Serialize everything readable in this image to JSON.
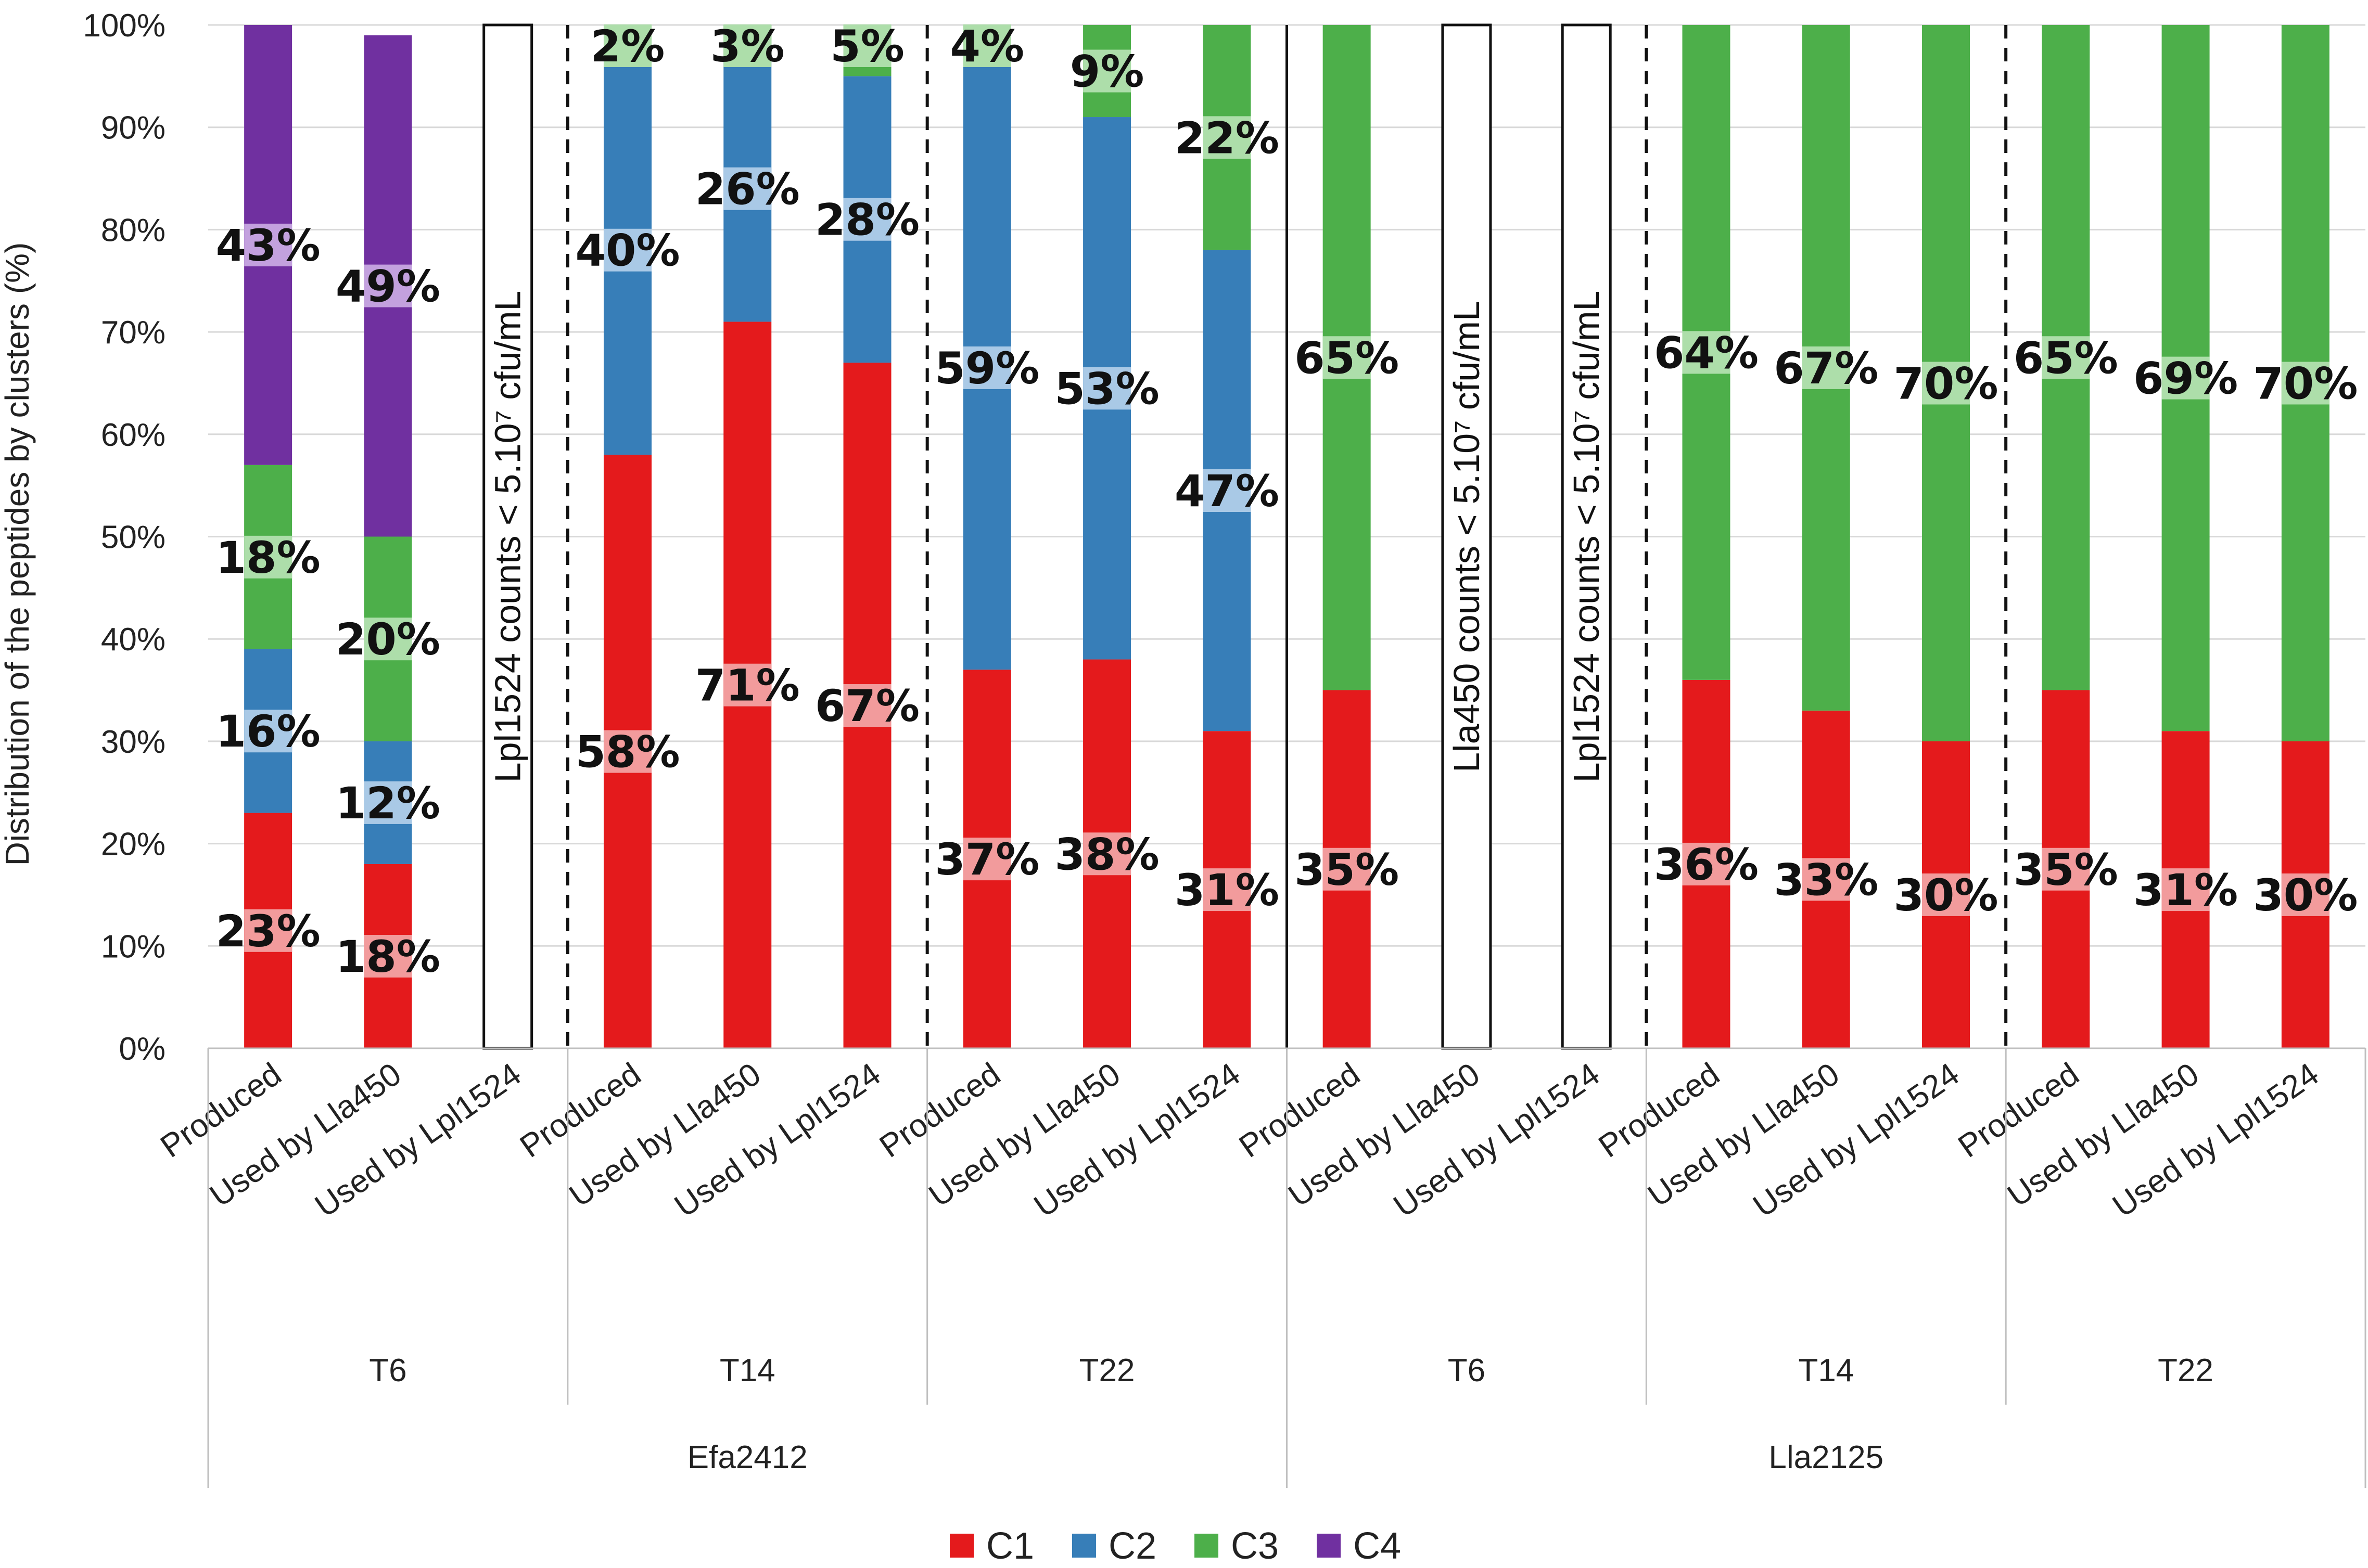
{
  "chart_data": {
    "type": "bar",
    "stacked": true,
    "ylabel": "Distribution of the peptides by clusters (%)",
    "ylim": [
      0,
      100
    ],
    "yticks": [
      "0%",
      "10%",
      "20%",
      "30%",
      "40%",
      "50%",
      "60%",
      "70%",
      "80%",
      "90%",
      "100%"
    ],
    "legend": {
      "position": "bottom",
      "entries": [
        {
          "name": "C1",
          "color": "#e41a1c"
        },
        {
          "name": "C2",
          "color": "#377eb8"
        },
        {
          "name": "C3",
          "color": "#4daf4a"
        },
        {
          "name": "C4",
          "color": "#7030a0"
        }
      ]
    },
    "bars": [
      {
        "category": "Produced",
        "time": "T6",
        "strain": "Efa2412",
        "values": [
          23,
          16,
          18,
          43
        ],
        "labels": [
          "23%",
          "16%",
          "18%",
          "43%"
        ]
      },
      {
        "category": "Used by Lla450",
        "time": "T6",
        "strain": "Efa2412",
        "values": [
          18,
          12,
          20,
          49
        ],
        "labels": [
          "18%",
          "12%",
          "20%",
          "49%"
        ]
      },
      {
        "category": "Used by Lpl1524",
        "time": "T6",
        "strain": "Efa2412",
        "values": null,
        "note": "Lpl1524 counts < 5.10⁷ cfu/mL"
      },
      {
        "category": "Produced",
        "time": "T14",
        "strain": "Efa2412",
        "values": [
          58,
          40,
          2,
          0
        ],
        "labels": [
          "58%",
          "40%",
          "2%",
          ""
        ]
      },
      {
        "category": "Used by Lla450",
        "time": "T14",
        "strain": "Efa2412",
        "values": [
          71,
          26,
          3,
          0
        ],
        "labels": [
          "71%",
          "26%",
          "3%",
          ""
        ]
      },
      {
        "category": "Used by Lpl1524",
        "time": "T14",
        "strain": "Efa2412",
        "values": [
          67,
          28,
          5,
          0
        ],
        "labels": [
          "67%",
          "28%",
          "5%",
          ""
        ]
      },
      {
        "category": "Produced",
        "time": "T22",
        "strain": "Efa2412",
        "values": [
          37,
          59,
          4,
          0
        ],
        "labels": [
          "37%",
          "59%",
          "4%",
          ""
        ]
      },
      {
        "category": "Used by Lla450",
        "time": "T22",
        "strain": "Efa2412",
        "values": [
          38,
          53,
          9,
          0
        ],
        "labels": [
          "38%",
          "53%",
          "9%",
          ""
        ]
      },
      {
        "category": "Used by Lpl1524",
        "time": "T22",
        "strain": "Efa2412",
        "values": [
          31,
          47,
          22,
          0
        ],
        "labels": [
          "31%",
          "47%",
          "22%",
          ""
        ]
      },
      {
        "category": "Produced",
        "time": "T6",
        "strain": "Lla2125",
        "values": [
          35,
          0,
          65,
          0
        ],
        "labels": [
          "35%",
          "",
          "65%",
          ""
        ]
      },
      {
        "category": "Used by Lla450",
        "time": "T6",
        "strain": "Lla2125",
        "values": null,
        "note": "Lla450 counts < 5.10⁷ cfu/mL"
      },
      {
        "category": "Used by Lpl1524",
        "time": "T6",
        "strain": "Lla2125",
        "values": null,
        "note": "Lpl1524 counts < 5.10⁷ cfu/mL"
      },
      {
        "category": "Produced",
        "time": "T14",
        "strain": "Lla2125",
        "values": [
          36,
          0,
          64,
          0
        ],
        "labels": [
          "36%",
          "",
          "64%",
          ""
        ]
      },
      {
        "category": "Used by Lla450",
        "time": "T14",
        "strain": "Lla2125",
        "values": [
          33,
          0,
          67,
          0
        ],
        "labels": [
          "33%",
          "",
          "67%",
          ""
        ]
      },
      {
        "category": "Used by Lpl1524",
        "time": "T14",
        "strain": "Lla2125",
        "values": [
          30,
          0,
          70,
          0
        ],
        "labels": [
          "30%",
          "",
          "70%",
          ""
        ]
      },
      {
        "category": "Produced",
        "time": "T22",
        "strain": "Lla2125",
        "values": [
          35,
          0,
          65,
          0
        ],
        "labels": [
          "35%",
          "",
          "65%",
          ""
        ]
      },
      {
        "category": "Used by Lla450",
        "time": "T22",
        "strain": "Lla2125",
        "values": [
          31,
          0,
          69,
          0
        ],
        "labels": [
          "31%",
          "",
          "69%",
          ""
        ]
      },
      {
        "category": "Used by Lpl1524",
        "time": "T22",
        "strain": "Lla2125",
        "values": [
          30,
          0,
          70,
          0
        ],
        "labels": [
          "30%",
          "",
          "70%",
          ""
        ]
      }
    ],
    "time_groups": [
      "T6",
      "T14",
      "T22",
      "T6",
      "T14",
      "T22"
    ],
    "strain_groups": [
      "Efa2412",
      "Lla2125"
    ]
  }
}
